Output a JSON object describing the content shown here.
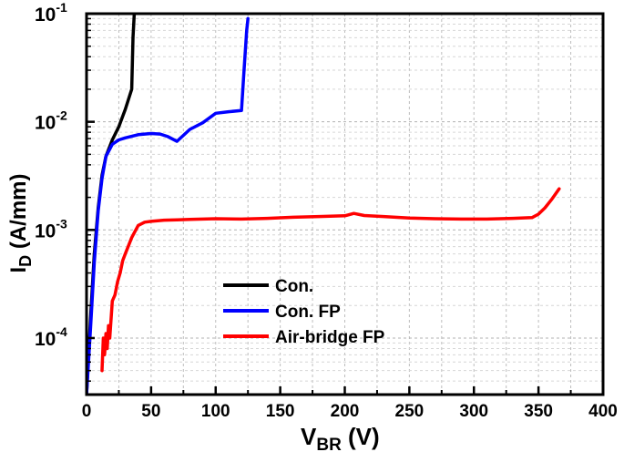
{
  "chart_data": {
    "type": "line",
    "xlabel": {
      "main": "V",
      "sub": "BR",
      "unit": " (V)"
    },
    "ylabel": {
      "main": "I",
      "sub": "D",
      "unit": " (A/mm)"
    },
    "xlim": [
      0,
      400
    ],
    "ylim": [
      3e-05,
      0.1
    ],
    "yscale": "log",
    "grid": true,
    "legend_position": "center-left",
    "xticks": [
      {
        "value": 0,
        "label": "0"
      },
      {
        "value": 50,
        "label": "50"
      },
      {
        "value": 100,
        "label": "100"
      },
      {
        "value": 150,
        "label": "150"
      },
      {
        "value": 200,
        "label": "200"
      },
      {
        "value": 250,
        "label": "250"
      },
      {
        "value": 300,
        "label": "300"
      },
      {
        "value": 350,
        "label": "350"
      },
      {
        "value": 400,
        "label": "400"
      }
    ],
    "yticks": [
      {
        "value": 0.0001,
        "base": "10",
        "exp": "-4"
      },
      {
        "value": 0.001,
        "base": "10",
        "exp": "-3"
      },
      {
        "value": 0.01,
        "base": "10",
        "exp": "-2"
      },
      {
        "value": 0.1,
        "base": "10",
        "exp": "-1"
      }
    ],
    "series": [
      {
        "name": "Con.",
        "color": "#000000",
        "x": [
          0,
          3,
          6,
          9,
          12,
          15,
          20,
          25,
          30,
          35,
          36,
          37
        ],
        "y": [
          3e-05,
          0.00015,
          0.0006,
          0.0016,
          0.0032,
          0.0048,
          0.0068,
          0.009,
          0.013,
          0.02,
          0.06,
          0.1
        ]
      },
      {
        "name": "Con. FP",
        "color": "#0000ff",
        "x": [
          0,
          3,
          6,
          9,
          12,
          15,
          20,
          25,
          30,
          40,
          50,
          57,
          63,
          70,
          80,
          90,
          100,
          110,
          120,
          122,
          124,
          125
        ],
        "y": [
          3e-05,
          0.00012,
          0.0005,
          0.0015,
          0.003,
          0.0048,
          0.0062,
          0.0068,
          0.0071,
          0.0076,
          0.0078,
          0.0077,
          0.0073,
          0.0066,
          0.0085,
          0.0098,
          0.012,
          0.0124,
          0.0127,
          0.03,
          0.07,
          0.09
        ]
      },
      {
        "name": "Air-bridge FP",
        "color": "#ff0000",
        "x": [
          12,
          13,
          14,
          15,
          16,
          17,
          18,
          20,
          22,
          24,
          26,
          28,
          30,
          35,
          40,
          45,
          50,
          60,
          70,
          80,
          90,
          100,
          120,
          140,
          160,
          180,
          200,
          207,
          215,
          230,
          250,
          270,
          290,
          310,
          330,
          345,
          350,
          355,
          360,
          366
        ],
        "y": [
          5e-05,
          0.0001,
          7e-05,
          0.00011,
          8e-05,
          0.00013,
          0.0001,
          0.00022,
          0.00025,
          0.00033,
          0.0004,
          0.00052,
          0.0006,
          0.00085,
          0.0011,
          0.00118,
          0.0012,
          0.00123,
          0.00124,
          0.00125,
          0.00126,
          0.00127,
          0.00126,
          0.00128,
          0.00131,
          0.00133,
          0.00135,
          0.00142,
          0.00136,
          0.00133,
          0.00129,
          0.00127,
          0.00126,
          0.00126,
          0.00128,
          0.0013,
          0.0014,
          0.0016,
          0.0019,
          0.0024
        ]
      }
    ]
  }
}
